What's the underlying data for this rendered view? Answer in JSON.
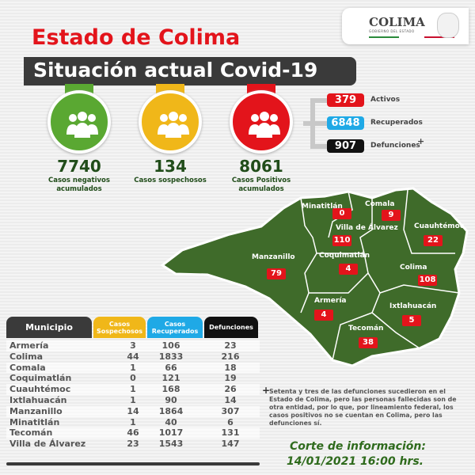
{
  "header": {
    "title": "Estado de Colima",
    "subtitle": "Situación actual Covid-19",
    "logo_text": "COLIMA",
    "logo_subtext": "GOBIERNO DEL ESTADO"
  },
  "stats": [
    {
      "value": "7740",
      "label": "Casos negativos acumulados",
      "color": "#5aa832"
    },
    {
      "value": "134",
      "label": "Casos sospechosos",
      "color": "#f0b719"
    },
    {
      "value": "8061",
      "label": "Casos Positivos acumulados",
      "color": "#e3141b"
    }
  ],
  "breakdown": [
    {
      "value": "379",
      "label": "Activos",
      "color": "#e3141b"
    },
    {
      "value": "6848",
      "label": "Recuperados",
      "color": "#1fa9e6"
    },
    {
      "value": "907",
      "label": "Defunciones",
      "mark": "+",
      "color": "#111111"
    }
  ],
  "map": [
    {
      "name": "Minatitlán",
      "value": "0"
    },
    {
      "name": "Comala",
      "value": "9"
    },
    {
      "name": "Villa de Álvarez",
      "value": "110"
    },
    {
      "name": "Cuauhtémoc",
      "value": "22"
    },
    {
      "name": "Manzanillo",
      "value": "79"
    },
    {
      "name": "Coquimatlán",
      "value": "4"
    },
    {
      "name": "Colima",
      "value": "108"
    },
    {
      "name": "Armería",
      "value": "4"
    },
    {
      "name": "Ixtlahuacán",
      "value": "5"
    },
    {
      "name": "Tecomán",
      "value": "38"
    }
  ],
  "table": {
    "headers": [
      "Municipio",
      "Casos Sospechosos",
      "Casos Recuperados",
      "Defunciones"
    ],
    "rows": [
      [
        "Armería",
        "3",
        "106",
        "23"
      ],
      [
        "Colima",
        "44",
        "1833",
        "216"
      ],
      [
        "Comala",
        "1",
        "66",
        "18"
      ],
      [
        "Coquimatlán",
        "0",
        "121",
        "19"
      ],
      [
        "Cuauhtémoc",
        "1",
        "168",
        "26"
      ],
      [
        "Ixtlahuacán",
        "1",
        "90",
        "14"
      ],
      [
        "Manzanillo",
        "14",
        "1864",
        "307"
      ],
      [
        "Minatitlán",
        "1",
        "40",
        "6"
      ],
      [
        "Tecomán",
        "46",
        "1017",
        "131"
      ],
      [
        "Villa de Álvarez",
        "23",
        "1543",
        "147"
      ]
    ]
  },
  "footnote": {
    "mark": "+",
    "text": "Setenta y tres de las defunciones sucedieron en el Estado de Colima, pero las personas fallecidas son de otra entidad, por lo que, por lineamiento federal, los casos positivos no se cuentan en Colima, pero las defunciones sí."
  },
  "cutoff": {
    "line1": "Corte de información:",
    "line2": "14/01/2021 16:00 hrs."
  }
}
